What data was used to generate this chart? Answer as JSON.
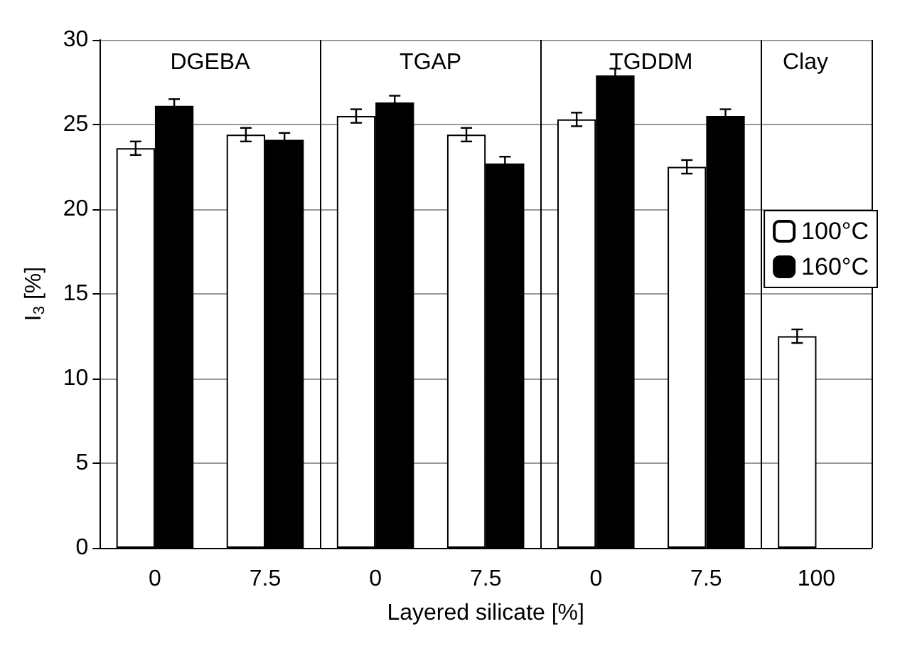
{
  "chart_data": {
    "type": "bar",
    "xlabel": "Layered silicate [%]",
    "ylabel": "I$_{3}$ [%]",
    "categories": [
      "0",
      "7.5",
      "0",
      "7.5",
      "0",
      "7.5",
      "100"
    ],
    "series": [
      {
        "name": "100°C",
        "color": "#ffffff",
        "values": [
          23.6,
          24.4,
          25.5,
          24.4,
          25.3,
          22.5,
          12.5
        ],
        "errors": [
          0.4,
          0.4,
          0.4,
          0.4,
          0.4,
          0.4,
          0.4
        ]
      },
      {
        "name": "160°C",
        "color": "#000000",
        "values": [
          26.1,
          24.1,
          26.3,
          22.7,
          27.9,
          25.5,
          null
        ],
        "errors": [
          0.4,
          0.4,
          0.4,
          0.4,
          0.4,
          0.4,
          null
        ]
      }
    ],
    "ylim": [
      0,
      30
    ],
    "yticks": [
      0,
      5,
      10,
      15,
      20,
      25,
      30
    ],
    "grid": "y",
    "legend": "right",
    "annotations": [
      "DGEBA",
      "TGAP",
      "TGDDM",
      "Clay"
    ]
  }
}
